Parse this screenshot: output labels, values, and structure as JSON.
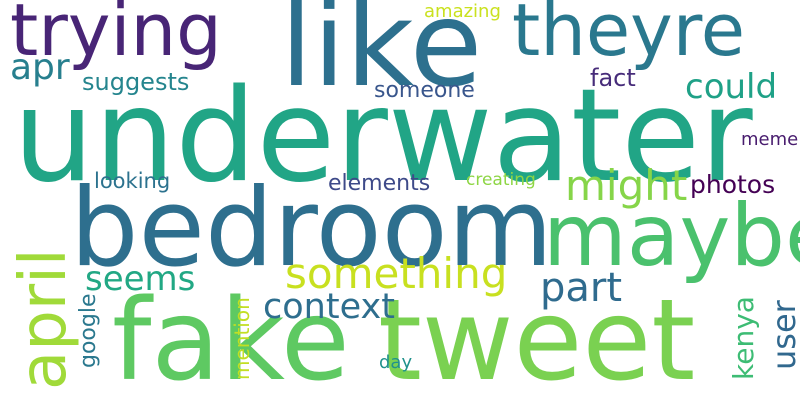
{
  "words": [
    {
      "key": "underwater",
      "text": "underwater",
      "color": "#21a586"
    },
    {
      "key": "bedroom",
      "text": "bedroom",
      "color": "#2e6f8e"
    },
    {
      "key": "fake",
      "text": "fake",
      "color": "#5ec962"
    },
    {
      "key": "tweet",
      "text": "tweet",
      "color": "#7ad151"
    },
    {
      "key": "like",
      "text": "like",
      "color": "#2d708e"
    },
    {
      "key": "maybe",
      "text": "maybe",
      "color": "#4ac16d"
    },
    {
      "key": "trying",
      "text": "trying",
      "color": "#482576"
    },
    {
      "key": "theyre",
      "text": "theyre",
      "color": "#2a788e"
    },
    {
      "key": "april",
      "text": "april",
      "color": "#a0da39"
    },
    {
      "key": "something",
      "text": "something",
      "color": "#c8e020"
    },
    {
      "key": "might",
      "text": "might",
      "color": "#86d549"
    },
    {
      "key": "context",
      "text": "context",
      "color": "#2e6e8e"
    },
    {
      "key": "part",
      "text": "part",
      "color": "#2f6b8e"
    },
    {
      "key": "seems",
      "text": "seems",
      "color": "#22a884"
    },
    {
      "key": "could",
      "text": "could",
      "color": "#1fa187"
    },
    {
      "key": "apr",
      "text": "apr",
      "color": "#277f8e"
    },
    {
      "key": "suggests",
      "text": "suggests",
      "color": "#25858e"
    },
    {
      "key": "kenya",
      "text": "kenya",
      "color": "#3dbc74"
    },
    {
      "key": "user",
      "text": "user",
      "color": "#31688e"
    },
    {
      "key": "photos",
      "text": "photos",
      "color": "#440154"
    },
    {
      "key": "elements",
      "text": "elements",
      "color": "#3e4a89"
    },
    {
      "key": "fact",
      "text": "fact",
      "color": "#472c7a"
    },
    {
      "key": "someone",
      "text": "someone",
      "color": "#39568c"
    },
    {
      "key": "looking",
      "text": "looking",
      "color": "#2c728e"
    },
    {
      "key": "google",
      "text": "google",
      "color": "#2a788e"
    },
    {
      "key": "mention",
      "text": "mention",
      "color": "#c2df23"
    },
    {
      "key": "amazing",
      "text": "amazing",
      "color": "#cae11f"
    },
    {
      "key": "creating",
      "text": "creating",
      "color": "#8ed645"
    },
    {
      "key": "meme",
      "text": "meme",
      "color": "#481c6e"
    },
    {
      "key": "day",
      "text": "day",
      "color": "#20928c"
    }
  ]
}
